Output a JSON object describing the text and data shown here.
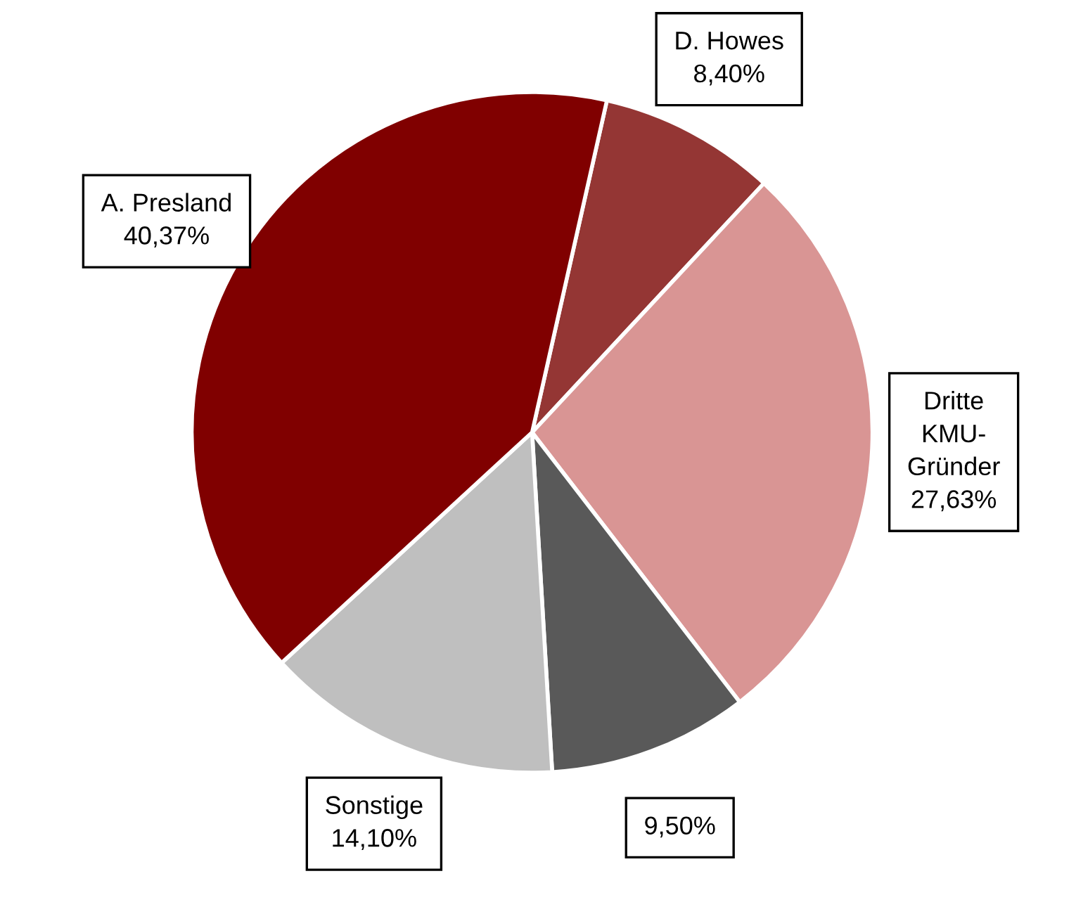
{
  "chart_data": {
    "type": "pie",
    "categories": [
      "D. Howes",
      "Dritte\nKMU-\nGründer",
      null,
      "Sonstige",
      "A. Presland"
    ],
    "values": [
      8.4,
      27.63,
      9.5,
      14.1,
      40.37
    ],
    "value_labels": [
      "8,40%",
      "27,63%",
      "9,50%",
      "14,10%",
      "40,37%"
    ],
    "colors": [
      "#943634",
      "#d99594",
      "#595959",
      "#bfbfbf",
      "#800000"
    ],
    "legend": false
  }
}
